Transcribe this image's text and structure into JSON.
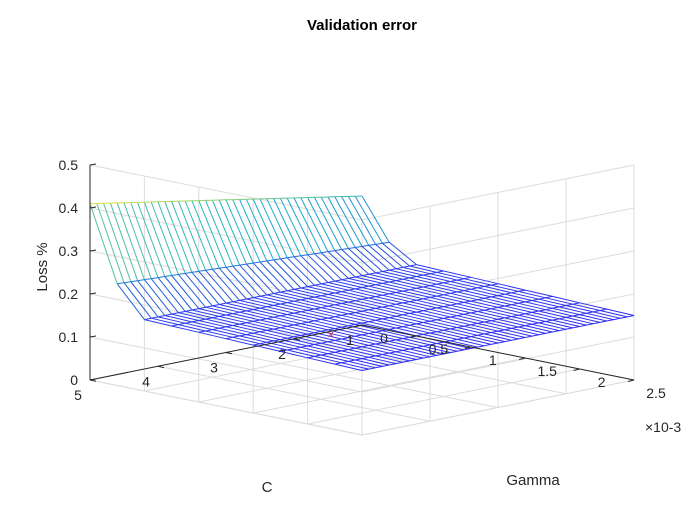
{
  "chart_data": {
    "type": "surface",
    "title": "Validation error",
    "zlabel": "Loss %",
    "xlabel": "Gamma",
    "ylabel": "C",
    "x_exponent": "×10-3",
    "zlim": [
      0,
      0.5
    ],
    "xlim": [
      0,
      2.5
    ],
    "ylim": [
      1,
      5
    ],
    "grid": true,
    "z_ticks": [
      "0",
      "0.1",
      "0.2",
      "0.3",
      "0.4",
      "0.5"
    ],
    "x_ticks": [
      "0",
      "0.5",
      "1",
      "1.5",
      "2",
      "2.5"
    ],
    "y_ticks": [
      "1",
      "2",
      "3",
      "4",
      "5"
    ],
    "colormap_low": "#2d2cf2",
    "colormap_mid": "#19b2c8",
    "colormap_high": "#f5e62a",
    "surface": {
      "gamma_range": [
        0,
        2.5
      ],
      "c_range": [
        1,
        5
      ],
      "gamma_steps": 10,
      "c_steps": 40,
      "base_loss": 0.17,
      "high_loss_at_gamma0": 0.41,
      "high_loss_at_gamma0_c_min": 0.3
    },
    "marker": {
      "gamma": 1.15,
      "c": 3.3,
      "loss": 0.11,
      "symbol": "×",
      "color": "#c8284a"
    }
  }
}
